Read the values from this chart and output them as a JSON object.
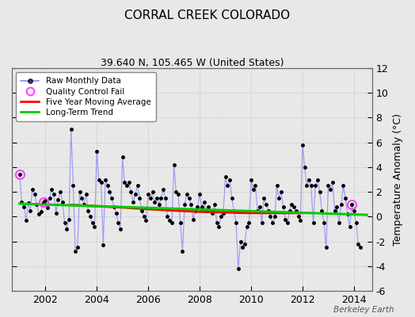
{
  "title": "CORRAL CREEK COLORADO",
  "subtitle": "39.640 N, 105.465 W (United States)",
  "ylabel": "Temperature Anomaly (°C)",
  "watermark": "Berkeley Earth",
  "ylim": [
    -6,
    12
  ],
  "xlim": [
    2000.7,
    2014.7
  ],
  "yticks": [
    -6,
    -4,
    -2,
    0,
    2,
    4,
    6,
    8,
    10,
    12
  ],
  "bg_color": "#e8e8e8",
  "plot_bg_color": "#e8e8e8",
  "raw_color": "#5555ff",
  "raw_line_alpha": 0.5,
  "raw_marker_color": "#000000",
  "ma_color": "#ff0000",
  "trend_color": "#00cc00",
  "qc_color": "#ff44ff",
  "raw_data": [
    [
      2001.0,
      3.4
    ],
    [
      2001.083,
      1.2
    ],
    [
      2001.167,
      0.8
    ],
    [
      2001.25,
      -0.3
    ],
    [
      2001.333,
      1.1
    ],
    [
      2001.417,
      0.5
    ],
    [
      2001.5,
      2.2
    ],
    [
      2001.583,
      1.8
    ],
    [
      2001.667,
      1.0
    ],
    [
      2001.75,
      0.2
    ],
    [
      2001.833,
      0.4
    ],
    [
      2001.917,
      1.2
    ],
    [
      2002.0,
      1.3
    ],
    [
      2002.083,
      0.7
    ],
    [
      2002.167,
      1.5
    ],
    [
      2002.25,
      2.2
    ],
    [
      2002.333,
      1.8
    ],
    [
      2002.417,
      0.3
    ],
    [
      2002.5,
      1.4
    ],
    [
      2002.583,
      2.0
    ],
    [
      2002.667,
      1.2
    ],
    [
      2002.75,
      -0.5
    ],
    [
      2002.833,
      -1.0
    ],
    [
      2002.917,
      -0.2
    ],
    [
      2003.0,
      7.1
    ],
    [
      2003.083,
      2.5
    ],
    [
      2003.167,
      -2.8
    ],
    [
      2003.25,
      -2.5
    ],
    [
      2003.333,
      2.0
    ],
    [
      2003.417,
      1.5
    ],
    [
      2003.5,
      1.0
    ],
    [
      2003.583,
      1.8
    ],
    [
      2003.667,
      0.5
    ],
    [
      2003.75,
      0.0
    ],
    [
      2003.833,
      -0.5
    ],
    [
      2003.917,
      -0.8
    ],
    [
      2004.0,
      5.3
    ],
    [
      2004.083,
      3.0
    ],
    [
      2004.167,
      2.8
    ],
    [
      2004.25,
      -2.3
    ],
    [
      2004.333,
      3.0
    ],
    [
      2004.417,
      2.5
    ],
    [
      2004.5,
      2.0
    ],
    [
      2004.583,
      1.5
    ],
    [
      2004.667,
      0.8
    ],
    [
      2004.75,
      0.3
    ],
    [
      2004.833,
      -0.5
    ],
    [
      2004.917,
      -1.0
    ],
    [
      2005.0,
      4.8
    ],
    [
      2005.083,
      2.8
    ],
    [
      2005.167,
      2.5
    ],
    [
      2005.25,
      2.8
    ],
    [
      2005.333,
      2.0
    ],
    [
      2005.417,
      1.2
    ],
    [
      2005.5,
      1.8
    ],
    [
      2005.583,
      2.5
    ],
    [
      2005.667,
      1.5
    ],
    [
      2005.75,
      0.5
    ],
    [
      2005.833,
      0.0
    ],
    [
      2005.917,
      -0.3
    ],
    [
      2006.0,
      1.8
    ],
    [
      2006.083,
      1.5
    ],
    [
      2006.167,
      2.0
    ],
    [
      2006.25,
      1.2
    ],
    [
      2006.333,
      1.5
    ],
    [
      2006.417,
      1.0
    ],
    [
      2006.5,
      1.5
    ],
    [
      2006.583,
      2.2
    ],
    [
      2006.667,
      1.5
    ],
    [
      2006.75,
      0.0
    ],
    [
      2006.833,
      -0.3
    ],
    [
      2006.917,
      -0.5
    ],
    [
      2007.0,
      4.2
    ],
    [
      2007.083,
      2.0
    ],
    [
      2007.167,
      1.8
    ],
    [
      2007.25,
      -0.5
    ],
    [
      2007.333,
      -2.8
    ],
    [
      2007.417,
      1.0
    ],
    [
      2007.5,
      1.8
    ],
    [
      2007.583,
      1.5
    ],
    [
      2007.667,
      1.0
    ],
    [
      2007.75,
      -0.2
    ],
    [
      2007.833,
      0.5
    ],
    [
      2007.917,
      0.8
    ],
    [
      2008.0,
      1.8
    ],
    [
      2008.083,
      0.8
    ],
    [
      2008.167,
      1.2
    ],
    [
      2008.25,
      0.5
    ],
    [
      2008.333,
      0.8
    ],
    [
      2008.417,
      0.5
    ],
    [
      2008.5,
      0.3
    ],
    [
      2008.583,
      1.0
    ],
    [
      2008.667,
      -0.5
    ],
    [
      2008.75,
      -0.8
    ],
    [
      2008.833,
      0.0
    ],
    [
      2008.917,
      0.3
    ],
    [
      2009.0,
      3.2
    ],
    [
      2009.083,
      2.5
    ],
    [
      2009.167,
      3.0
    ],
    [
      2009.25,
      1.5
    ],
    [
      2009.333,
      0.5
    ],
    [
      2009.417,
      -0.5
    ],
    [
      2009.5,
      -4.2
    ],
    [
      2009.583,
      -2.0
    ],
    [
      2009.667,
      -2.5
    ],
    [
      2009.75,
      -2.2
    ],
    [
      2009.833,
      -0.8
    ],
    [
      2009.917,
      -0.5
    ],
    [
      2010.0,
      3.0
    ],
    [
      2010.083,
      2.2
    ],
    [
      2010.167,
      2.5
    ],
    [
      2010.25,
      0.5
    ],
    [
      2010.333,
      0.8
    ],
    [
      2010.417,
      -0.5
    ],
    [
      2010.5,
      1.5
    ],
    [
      2010.583,
      1.0
    ],
    [
      2010.667,
      0.5
    ],
    [
      2010.75,
      0.0
    ],
    [
      2010.833,
      -0.5
    ],
    [
      2010.917,
      0.0
    ],
    [
      2011.0,
      2.5
    ],
    [
      2011.083,
      1.5
    ],
    [
      2011.167,
      2.0
    ],
    [
      2011.25,
      0.8
    ],
    [
      2011.333,
      -0.2
    ],
    [
      2011.417,
      -0.5
    ],
    [
      2011.5,
      0.5
    ],
    [
      2011.583,
      1.0
    ],
    [
      2011.667,
      0.8
    ],
    [
      2011.75,
      0.5
    ],
    [
      2011.833,
      0.0
    ],
    [
      2011.917,
      -0.3
    ],
    [
      2012.0,
      5.8
    ],
    [
      2012.083,
      4.0
    ],
    [
      2012.167,
      2.5
    ],
    [
      2012.25,
      3.0
    ],
    [
      2012.333,
      2.5
    ],
    [
      2012.417,
      -0.5
    ],
    [
      2012.5,
      2.5
    ],
    [
      2012.583,
      3.0
    ],
    [
      2012.667,
      2.0
    ],
    [
      2012.75,
      0.5
    ],
    [
      2012.833,
      -0.5
    ],
    [
      2012.917,
      -2.5
    ],
    [
      2013.0,
      2.5
    ],
    [
      2013.083,
      2.2
    ],
    [
      2013.167,
      2.8
    ],
    [
      2013.25,
      0.5
    ],
    [
      2013.333,
      0.8
    ],
    [
      2013.417,
      -0.5
    ],
    [
      2013.5,
      1.0
    ],
    [
      2013.583,
      2.5
    ],
    [
      2013.667,
      1.5
    ],
    [
      2013.75,
      0.2
    ],
    [
      2013.833,
      -0.8
    ],
    [
      2013.917,
      1.0
    ],
    [
      2014.0,
      0.5
    ],
    [
      2014.083,
      -0.5
    ],
    [
      2014.167,
      -2.2
    ],
    [
      2014.25,
      -2.5
    ]
  ],
  "qc_fail_points": [
    [
      2001.0,
      3.4
    ],
    [
      2001.917,
      1.2
    ],
    [
      2013.917,
      1.0
    ]
  ],
  "moving_avg": [
    [
      2003.0,
      0.95
    ],
    [
      2003.5,
      0.9
    ],
    [
      2004.0,
      0.85
    ],
    [
      2004.5,
      0.8
    ],
    [
      2005.0,
      0.75
    ],
    [
      2005.5,
      0.68
    ],
    [
      2006.0,
      0.62
    ],
    [
      2006.5,
      0.56
    ],
    [
      2007.0,
      0.5
    ],
    [
      2007.5,
      0.45
    ],
    [
      2008.0,
      0.4
    ],
    [
      2008.5,
      0.38
    ],
    [
      2009.0,
      0.35
    ],
    [
      2009.5,
      0.32
    ],
    [
      2010.0,
      0.3
    ],
    [
      2010.5,
      0.3
    ],
    [
      2011.0,
      0.3
    ],
    [
      2011.5,
      0.3
    ],
    [
      2012.0,
      0.3
    ]
  ],
  "trend_line": [
    [
      2001.0,
      1.05
    ],
    [
      2014.5,
      0.15
    ]
  ],
  "xticks": [
    2002,
    2004,
    2006,
    2008,
    2010,
    2012,
    2014
  ],
  "xtick_labels": [
    "2002",
    "2004",
    "2006",
    "2008",
    "2010",
    "2012",
    "2014"
  ]
}
